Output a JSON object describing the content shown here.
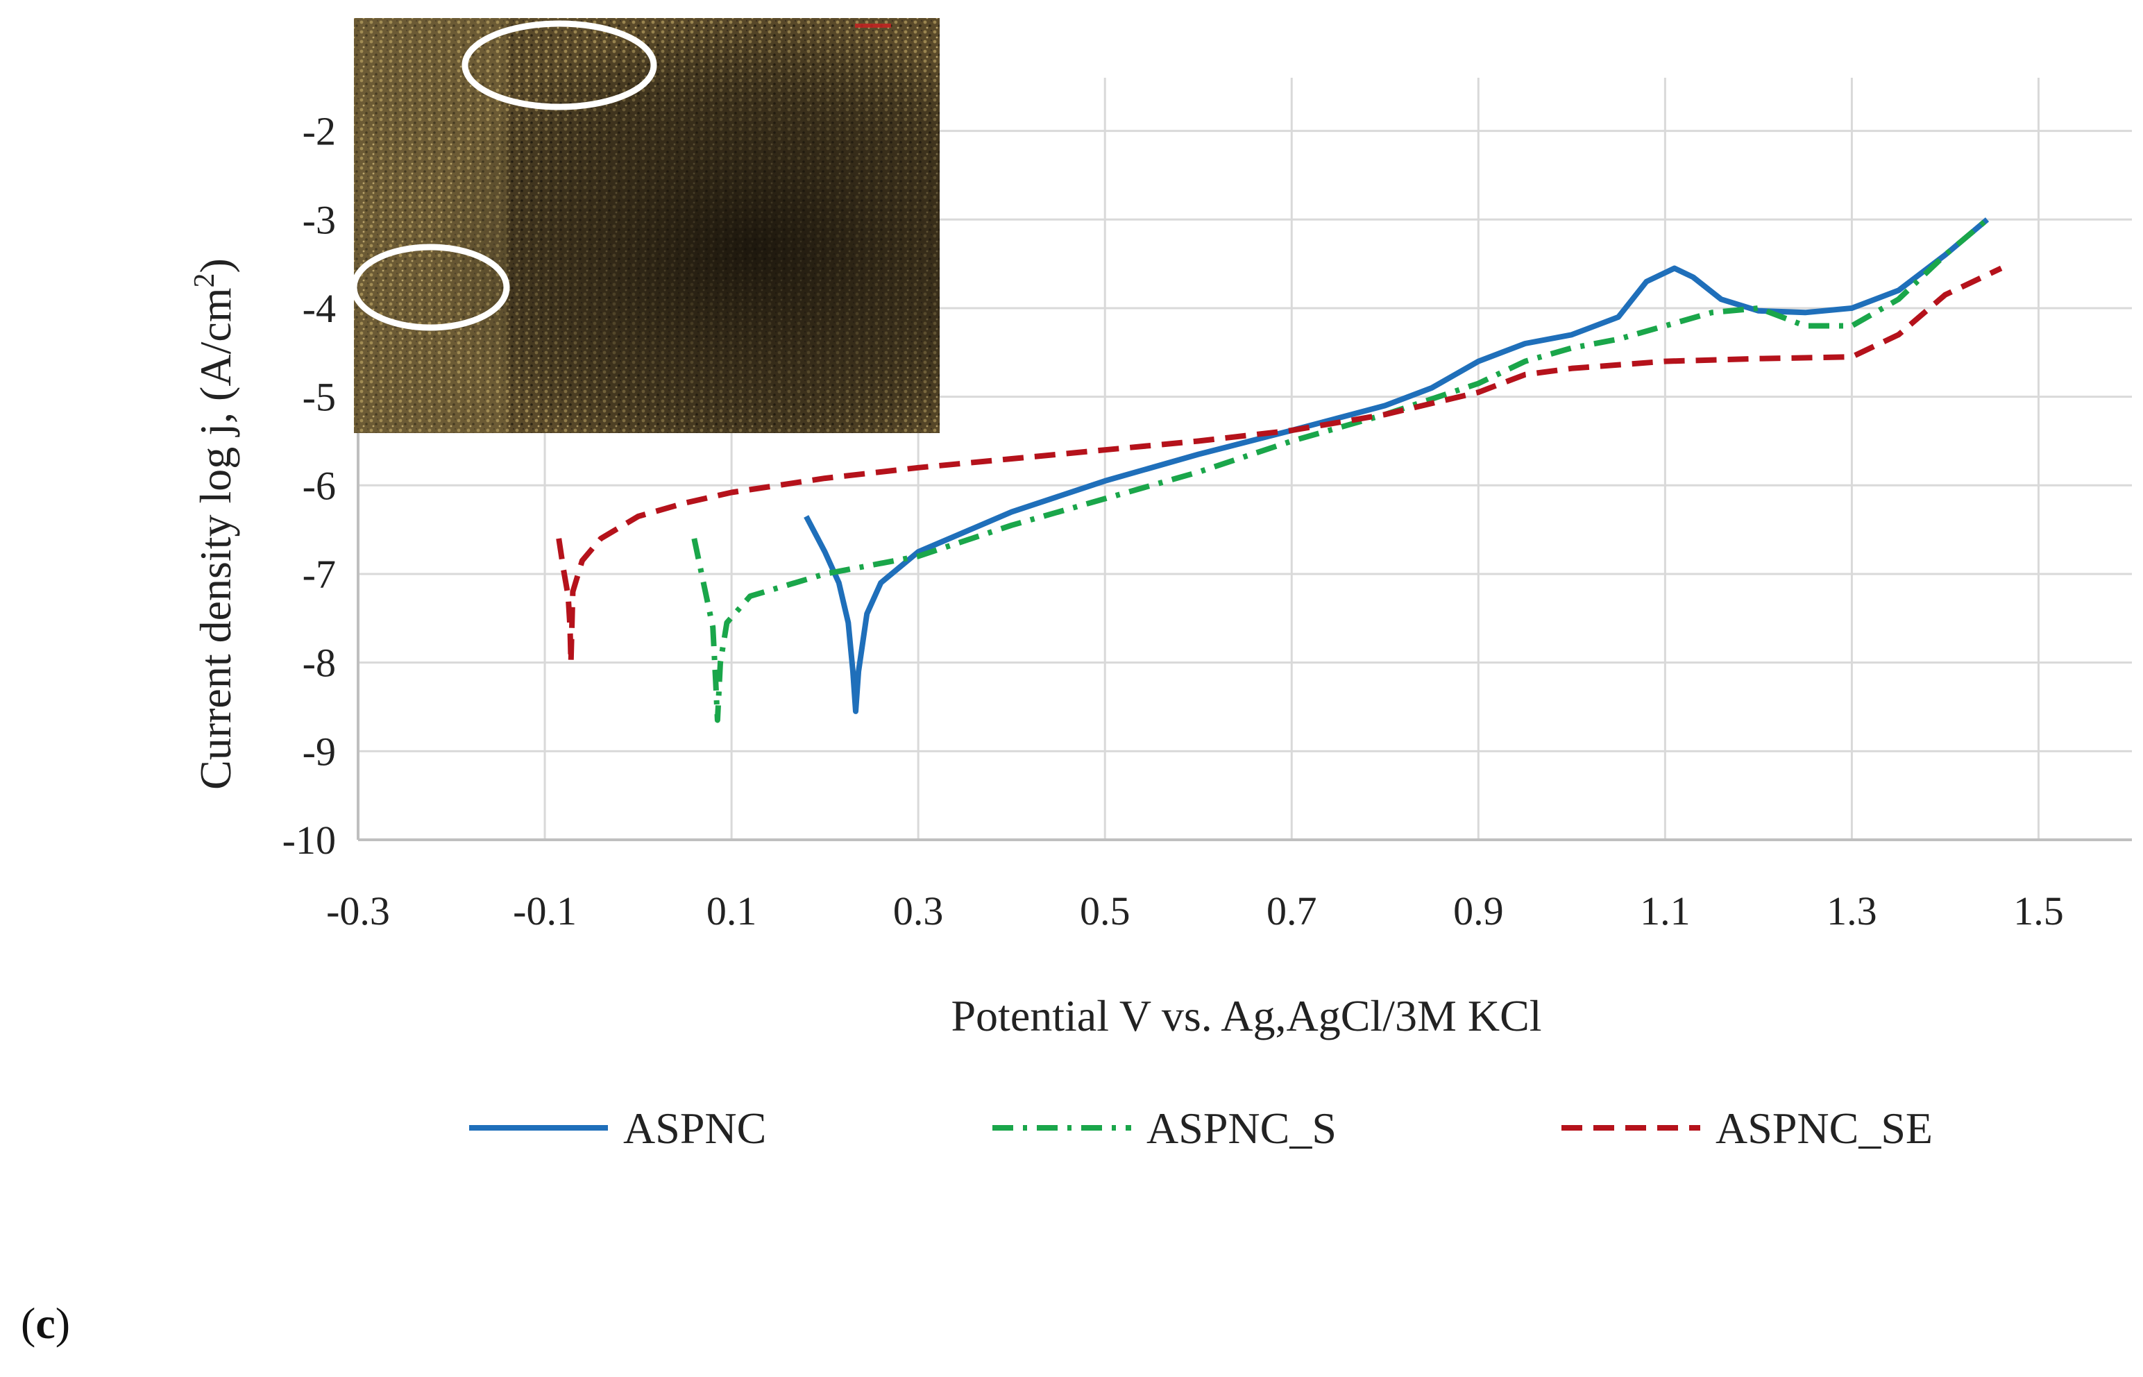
{
  "panel_label": {
    "open": "(",
    "letter": "c",
    "close": ")"
  },
  "colors": {
    "aspnc": "#1f6fba",
    "aspnc_s": "#1aa64a",
    "aspnc_se": "#b5121b",
    "grid": "#d9d9d9",
    "axis": "#bfbfbf"
  },
  "chart_data": {
    "type": "line",
    "title": "",
    "xlabel": "Potential V vs. Ag,AgCl/3M KCl",
    "ylabel_main": "Current density log j, (A/cm",
    "ylabel_sup": "2",
    "ylabel_close": ")",
    "xlim": [
      -0.3,
      1.6
    ],
    "ylim": [
      -10,
      -1.4
    ],
    "x_ticks": [
      -0.3,
      -0.1,
      0.1,
      0.3,
      0.5,
      0.7,
      0.9,
      1.1,
      1.3,
      1.5
    ],
    "x_tick_labels": [
      "-0.3",
      "-0.1",
      "0.1",
      "0.3",
      "0.5",
      "0.7",
      "0.9",
      "1.1",
      "1.3",
      "1.5"
    ],
    "y_ticks": [
      -10,
      -9,
      -8,
      -7,
      -6,
      -5,
      -4,
      -3,
      -2
    ],
    "y_tick_labels": [
      "-10",
      "-9",
      "-8",
      "-7",
      "-6",
      "-5",
      "-4",
      "-3",
      "-2"
    ],
    "legend_position": "bottom",
    "inset": "micrograph of corroded surface with two white circled regions",
    "series": [
      {
        "name": "ASPNC",
        "style": "solid",
        "points": [
          [
            0.18,
            -6.35
          ],
          [
            0.2,
            -6.75
          ],
          [
            0.215,
            -7.1
          ],
          [
            0.225,
            -7.55
          ],
          [
            0.23,
            -8.1
          ],
          [
            0.233,
            -8.55
          ],
          [
            0.236,
            -8.1
          ],
          [
            0.245,
            -7.45
          ],
          [
            0.26,
            -7.1
          ],
          [
            0.3,
            -6.75
          ],
          [
            0.4,
            -6.3
          ],
          [
            0.5,
            -5.95
          ],
          [
            0.6,
            -5.65
          ],
          [
            0.7,
            -5.38
          ],
          [
            0.8,
            -5.1
          ],
          [
            0.85,
            -4.9
          ],
          [
            0.9,
            -4.6
          ],
          [
            0.95,
            -4.4
          ],
          [
            1.0,
            -4.3
          ],
          [
            1.05,
            -4.1
          ],
          [
            1.08,
            -3.7
          ],
          [
            1.11,
            -3.55
          ],
          [
            1.13,
            -3.65
          ],
          [
            1.16,
            -3.9
          ],
          [
            1.2,
            -4.03
          ],
          [
            1.25,
            -4.05
          ],
          [
            1.3,
            -4.0
          ],
          [
            1.35,
            -3.8
          ],
          [
            1.4,
            -3.4
          ],
          [
            1.445,
            -3.0
          ]
        ]
      },
      {
        "name": "ASPNC_S",
        "style": "dashdot",
        "points": [
          [
            0.06,
            -6.6
          ],
          [
            0.07,
            -7.1
          ],
          [
            0.08,
            -7.6
          ],
          [
            0.083,
            -8.2
          ],
          [
            0.085,
            -8.65
          ],
          [
            0.088,
            -8.0
          ],
          [
            0.095,
            -7.55
          ],
          [
            0.12,
            -7.25
          ],
          [
            0.2,
            -7.0
          ],
          [
            0.3,
            -6.8
          ],
          [
            0.4,
            -6.45
          ],
          [
            0.5,
            -6.15
          ],
          [
            0.6,
            -5.85
          ],
          [
            0.7,
            -5.5
          ],
          [
            0.8,
            -5.2
          ],
          [
            0.9,
            -4.85
          ],
          [
            0.95,
            -4.6
          ],
          [
            1.0,
            -4.45
          ],
          [
            1.05,
            -4.35
          ],
          [
            1.1,
            -4.2
          ],
          [
            1.15,
            -4.05
          ],
          [
            1.2,
            -4.0
          ],
          [
            1.25,
            -4.2
          ],
          [
            1.3,
            -4.2
          ],
          [
            1.35,
            -3.9
          ],
          [
            1.4,
            -3.4
          ],
          [
            1.445,
            -3.0
          ]
        ]
      },
      {
        "name": "ASPNC_SE",
        "style": "dashed",
        "points": [
          [
            -0.085,
            -6.6
          ],
          [
            -0.08,
            -6.95
          ],
          [
            -0.075,
            -7.25
          ],
          [
            -0.073,
            -7.6
          ],
          [
            -0.072,
            -8.0
          ],
          [
            -0.07,
            -7.2
          ],
          [
            -0.06,
            -6.85
          ],
          [
            -0.04,
            -6.6
          ],
          [
            0.0,
            -6.35
          ],
          [
            0.05,
            -6.2
          ],
          [
            0.1,
            -6.08
          ],
          [
            0.2,
            -5.92
          ],
          [
            0.3,
            -5.8
          ],
          [
            0.4,
            -5.7
          ],
          [
            0.5,
            -5.6
          ],
          [
            0.6,
            -5.5
          ],
          [
            0.7,
            -5.38
          ],
          [
            0.8,
            -5.2
          ],
          [
            0.9,
            -4.95
          ],
          [
            0.95,
            -4.75
          ],
          [
            1.0,
            -4.68
          ],
          [
            1.1,
            -4.6
          ],
          [
            1.2,
            -4.57
          ],
          [
            1.3,
            -4.55
          ],
          [
            1.35,
            -4.3
          ],
          [
            1.4,
            -3.85
          ],
          [
            1.46,
            -3.55
          ]
        ]
      }
    ]
  }
}
